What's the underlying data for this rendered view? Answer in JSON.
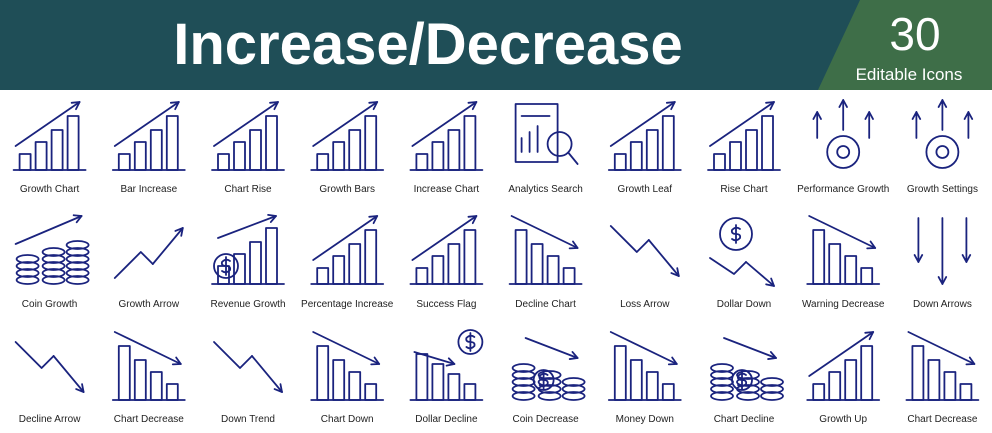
{
  "header": {
    "title": "Increase/Decrease",
    "count": 30,
    "subtitle": "Editable Icons"
  },
  "icons": {
    "rows": [
      [
        "Growth Chart",
        "Bar Increase",
        "Chart Rise",
        "Growth Bars",
        "Increase Chart",
        "Analytics Search",
        "Growth Leaf",
        "Rise Chart",
        "Performance Growth",
        "Growth Settings"
      ],
      [
        "Coin Growth",
        "Growth Arrow",
        "Revenue Growth",
        "Percentage Increase",
        "Success Flag",
        "Decline Chart",
        "Loss Arrow",
        "Dollar Down",
        "Warning Decrease",
        "Down Arrows"
      ],
      [
        "Decline Arrow",
        "Chart Decrease",
        "Down Trend",
        "Chart Down",
        "Dollar Decline",
        "Coin Decrease",
        "Money Down",
        "Chart Decline",
        "Growth Up",
        "Chart Decrease"
      ]
    ]
  }
}
